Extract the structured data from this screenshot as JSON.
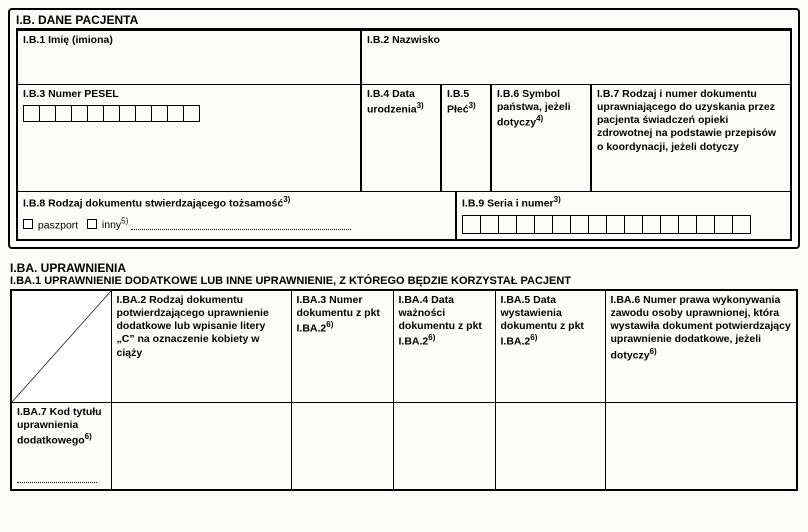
{
  "sectionB": {
    "header": "I.B. DANE PACJENTA",
    "b1": {
      "label": "I.B.1 Imię (imiona)"
    },
    "b2": {
      "label": "I.B.2 Nazwisko"
    },
    "b3": {
      "label": "I.B.3 Numer PESEL",
      "boxCount": 11
    },
    "b4": {
      "label": "I.B.4 Data urodzenia",
      "sup": "3)"
    },
    "b5": {
      "label": "I.B.5 Płeć",
      "sup": "3)"
    },
    "b6": {
      "label": "I.B.6 Symbol państwa, jeżeli dotyczy",
      "sup": "4)"
    },
    "b7": {
      "label": "I.B.7 Rodzaj i numer dokumentu uprawniającego do uzyskania przez pacjenta świadczeń opieki zdrowotnej na podstawie przepisów o koordynacji, jeżeli dotyczy"
    },
    "b8": {
      "label": "I.B.8 Rodzaj dokumentu stwierdzającego tożsamość",
      "sup": "3)",
      "opt1": "paszport",
      "opt2": "inny",
      "opt2sup": "5)"
    },
    "b9": {
      "label": "I.B.9 Seria i numer",
      "sup": "3)",
      "boxCount": 16
    }
  },
  "sectionBA": {
    "header": "I.BA. UPRAWNIENIA",
    "sub": "I.BA.1 UPRAWNIENIE DODATKOWE LUB INNE UPRAWNIENIE, Z KTÓREGO BĘDZIE KORZYSTAŁ PACJENT",
    "ba2": {
      "label": "I.BA.2 Rodzaj dokumentu potwierdzającego uprawnienie dodatkowe lub wpisanie litery „C” na oznaczenie kobiety w ciąży"
    },
    "ba3": {
      "label": "I.BA.3 Numer dokumentu z pkt I.BA.2",
      "sup": "6)"
    },
    "ba4": {
      "label": "I.BA.4 Data ważności dokumentu z pkt I.BA.2",
      "sup": "6)"
    },
    "ba5": {
      "label": "I.BA.5 Data wystawienia dokumentu z pkt I.BA.2",
      "sup": "6)"
    },
    "ba6": {
      "label": "I.BA.6 Numer prawa wykonywania zawodu osoby uprawnionej, która wystawiła dokument potwierdzający uprawnienie dodatkowe, jeżeli dotyczy",
      "sup": "6)"
    },
    "ba7": {
      "label": "I.BA.7 Kod tytułu uprawnienia dodatkowego",
      "sup": "6)"
    }
  },
  "layout": {
    "colBA": [
      100,
      180,
      100,
      100,
      110,
      170
    ],
    "row1H": 56,
    "row2H": 98,
    "row3H": 44,
    "baHeaderH": 112,
    "baRow2H": 88
  }
}
